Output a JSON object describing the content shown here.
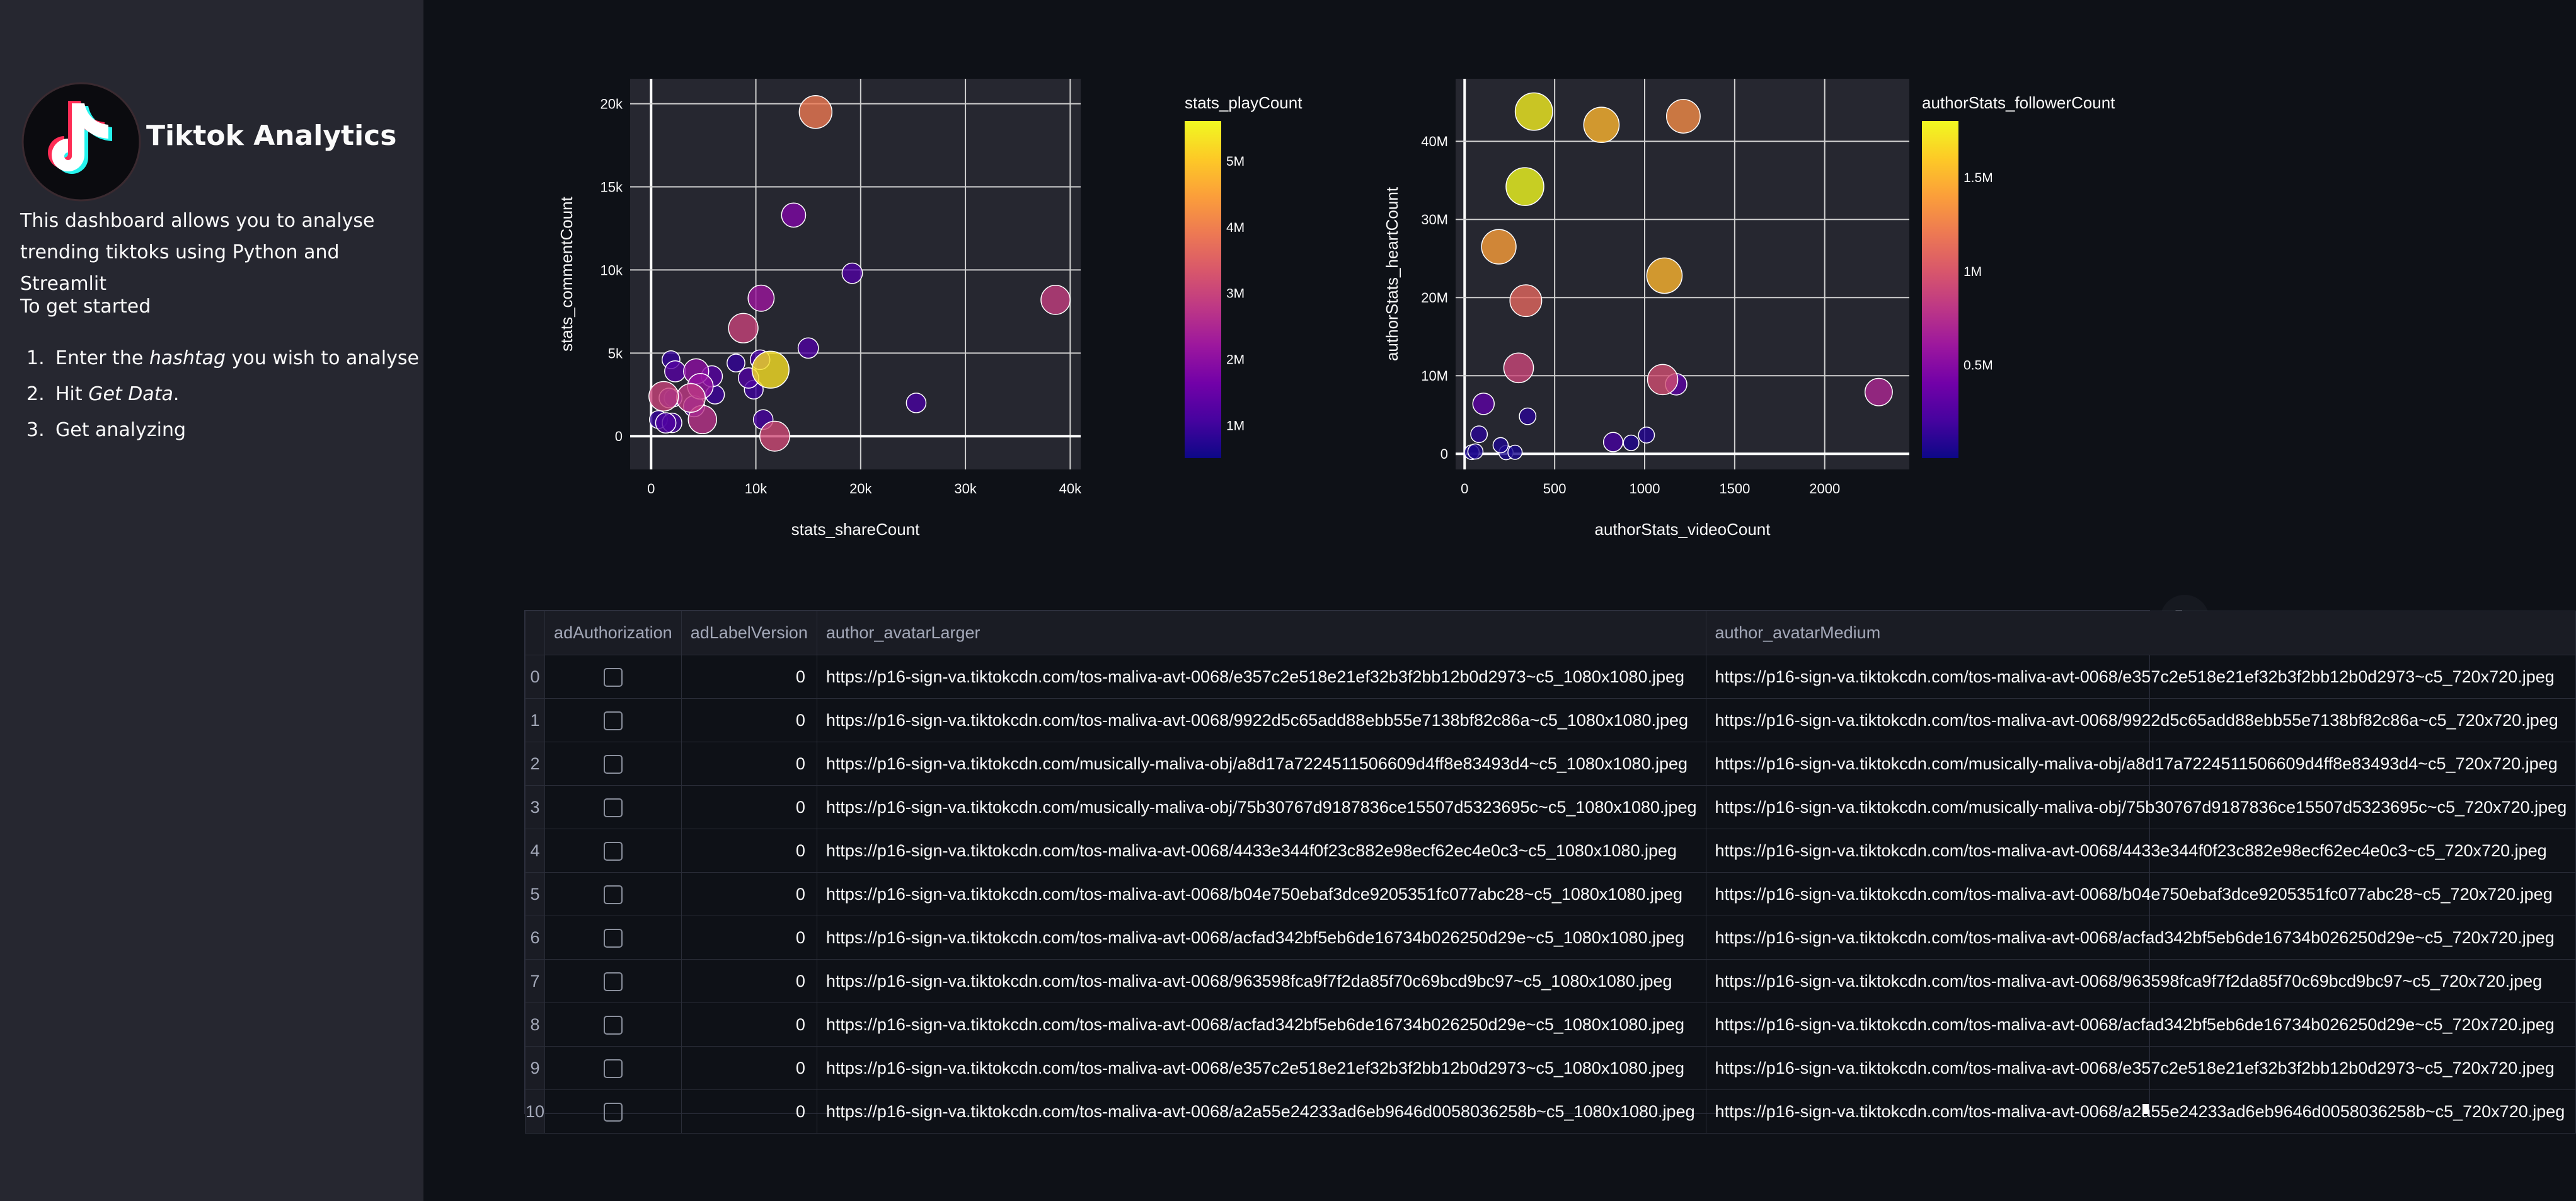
{
  "sidebar": {
    "title": "Tiktok Analytics",
    "logo_icon": "tiktok-logo-icon",
    "intro": "This dashboard allows you to analyse trending tiktoks using Python and Streamlit",
    "get_started": "To get started",
    "steps": [
      {
        "num": "1.",
        "pre": "Enter the ",
        "em": "hashtag",
        "post": " you wish to analyse"
      },
      {
        "num": "2.",
        "pre": "Hit ",
        "em": "Get Data",
        "post": "."
      },
      {
        "num": "3.",
        "pre": "Get analyzing",
        "em": "",
        "post": ""
      }
    ]
  },
  "chart_data": [
    {
      "type": "scatter",
      "xlabel": "stats_shareCount",
      "ylabel": "stats_commentCount",
      "colorbar_title": "stats_playCount",
      "x_ticks": [
        {
          "v": 0,
          "label": "0"
        },
        {
          "v": 10000,
          "label": "10k"
        },
        {
          "v": 20000,
          "label": "20k"
        },
        {
          "v": 30000,
          "label": "30k"
        },
        {
          "v": 40000,
          "label": "40k"
        }
      ],
      "y_ticks": [
        {
          "v": 0,
          "label": "0"
        },
        {
          "v": 5000,
          "label": "5k"
        },
        {
          "v": 10000,
          "label": "10k"
        },
        {
          "v": 15000,
          "label": "15k"
        },
        {
          "v": 20000,
          "label": "20k"
        }
      ],
      "xlim": [
        -2000,
        41000
      ],
      "ylim": [
        -2000,
        21500
      ],
      "colorbar_ticks": [
        {
          "v": 1000000,
          "label": "1M"
        },
        {
          "v": 2000000,
          "label": "2M"
        },
        {
          "v": 3000000,
          "label": "3M"
        },
        {
          "v": 4000000,
          "label": "4M"
        },
        {
          "v": 5000000,
          "label": "5M"
        }
      ],
      "color_range": [
        500000,
        5600000
      ],
      "colorscale": [
        "#0d0887",
        "#46039f",
        "#7201a8",
        "#9c179e",
        "#bd3786",
        "#d8576b",
        "#ed7953",
        "#fb9f3a",
        "#fdca26",
        "#f0f921"
      ],
      "points": [
        {
          "x": 15700,
          "y": 19500,
          "c": 3900000
        },
        {
          "x": 13600,
          "y": 13300,
          "c": 1800000
        },
        {
          "x": 19200,
          "y": 9800,
          "c": 1200000
        },
        {
          "x": 38600,
          "y": 8200,
          "c": 2900000
        },
        {
          "x": 10500,
          "y": 8300,
          "c": 2200000
        },
        {
          "x": 8800,
          "y": 6500,
          "c": 3000000
        },
        {
          "x": 11400,
          "y": 4000,
          "c": 5300000
        },
        {
          "x": 15000,
          "y": 5300,
          "c": 1200000
        },
        {
          "x": 25300,
          "y": 2000,
          "c": 1100000
        },
        {
          "x": 10400,
          "y": 4600,
          "c": 1100000
        },
        {
          "x": 8100,
          "y": 4400,
          "c": 900000
        },
        {
          "x": 1900,
          "y": 4600,
          "c": 900000
        },
        {
          "x": 2300,
          "y": 3900,
          "c": 1300000
        },
        {
          "x": 4300,
          "y": 3900,
          "c": 2000000
        },
        {
          "x": 5800,
          "y": 3600,
          "c": 1300000
        },
        {
          "x": 9300,
          "y": 3500,
          "c": 1200000
        },
        {
          "x": 4700,
          "y": 3000,
          "c": 2100000
        },
        {
          "x": 9800,
          "y": 2800,
          "c": 1000000
        },
        {
          "x": 6100,
          "y": 2500,
          "c": 1000000
        },
        {
          "x": 1200,
          "y": 2400,
          "c": 3000000
        },
        {
          "x": 1700,
          "y": 2300,
          "c": 1100000
        },
        {
          "x": 2100,
          "y": 2300,
          "c": 900000
        },
        {
          "x": 3800,
          "y": 2300,
          "c": 2800000
        },
        {
          "x": 4100,
          "y": 1800,
          "c": 1300000
        },
        {
          "x": 4900,
          "y": 1000,
          "c": 2700000
        },
        {
          "x": 700,
          "y": 1000,
          "c": 900000
        },
        {
          "x": 1400,
          "y": 800,
          "c": 1200000
        },
        {
          "x": 2000,
          "y": 800,
          "c": 1100000
        },
        {
          "x": 10700,
          "y": 1000,
          "c": 1100000
        },
        {
          "x": 11800,
          "y": 0,
          "c": 3100000
        }
      ]
    },
    {
      "type": "scatter",
      "xlabel": "authorStats_videoCount",
      "ylabel": "authorStats_heartCount",
      "colorbar_title": "authorStats_followerCount",
      "x_ticks": [
        {
          "v": 0,
          "label": "0"
        },
        {
          "v": 500,
          "label": "500"
        },
        {
          "v": 1000,
          "label": "1000"
        },
        {
          "v": 1500,
          "label": "1500"
        },
        {
          "v": 2000,
          "label": "2000"
        }
      ],
      "y_ticks": [
        {
          "v": 0,
          "label": "0"
        },
        {
          "v": 10000000,
          "label": "10M"
        },
        {
          "v": 20000000,
          "label": "20M"
        },
        {
          "v": 30000000,
          "label": "30M"
        },
        {
          "v": 40000000,
          "label": "40M"
        }
      ],
      "xlim": [
        -50,
        2470
      ],
      "ylim": [
        -2000000,
        48000000
      ],
      "colorbar_ticks": [
        {
          "v": 500000,
          "label": "0.5M"
        },
        {
          "v": 1000000,
          "label": "1M"
        },
        {
          "v": 1500000,
          "label": "1.5M"
        }
      ],
      "color_range": [
        0,
        1800000
      ],
      "colorscale": [
        "#0d0887",
        "#46039f",
        "#7201a8",
        "#9c179e",
        "#bd3786",
        "#d8576b",
        "#ed7953",
        "#fb9f3a",
        "#fdca26",
        "#f0f921"
      ],
      "points": [
        {
          "x": 385,
          "y": 43800000,
          "c": 1750000
        },
        {
          "x": 760,
          "y": 42100000,
          "c": 1500000
        },
        {
          "x": 1215,
          "y": 43200000,
          "c": 1300000
        },
        {
          "x": 335,
          "y": 34200000,
          "c": 1800000
        },
        {
          "x": 190,
          "y": 26500000,
          "c": 1400000
        },
        {
          "x": 1110,
          "y": 22800000,
          "c": 1500000
        },
        {
          "x": 340,
          "y": 19600000,
          "c": 1100000
        },
        {
          "x": 300,
          "y": 11000000,
          "c": 900000
        },
        {
          "x": 1100,
          "y": 9500000,
          "c": 950000
        },
        {
          "x": 1175,
          "y": 8900000,
          "c": 300000
        },
        {
          "x": 2300,
          "y": 7900000,
          "c": 700000
        },
        {
          "x": 105,
          "y": 6400000,
          "c": 300000
        },
        {
          "x": 350,
          "y": 4800000,
          "c": 100000
        },
        {
          "x": 80,
          "y": 2500000,
          "c": 100000
        },
        {
          "x": 1010,
          "y": 2400000,
          "c": 80000
        },
        {
          "x": 825,
          "y": 1500000,
          "c": 200000
        },
        {
          "x": 925,
          "y": 1400000,
          "c": 70000
        },
        {
          "x": 200,
          "y": 1100000,
          "c": 60000
        },
        {
          "x": 40,
          "y": 200000,
          "c": 50000
        },
        {
          "x": 60,
          "y": 300000,
          "c": 60000
        },
        {
          "x": 230,
          "y": 150000,
          "c": 40000
        },
        {
          "x": 280,
          "y": 200000,
          "c": 40000
        }
      ]
    }
  ],
  "table": {
    "columns": [
      "adAuthorization",
      "adLabelVersion",
      "author_avatarLarger",
      "author_avatarMedium"
    ],
    "rows": [
      {
        "index": "0",
        "adLabel": "0",
        "large": "https://p16-sign-va.tiktokcdn.com/tos-maliva-avt-0068/e357c2e518e21ef32b3f2bb12b0d2973~c5_1080x1080.jpeg",
        "medium": "https://p16-sign-va.tiktokcdn.com/tos-maliva-avt-0068/e357c2e518e21ef32b3f2bb12b0d2973~c5_720x720.jpeg"
      },
      {
        "index": "1",
        "adLabel": "0",
        "large": "https://p16-sign-va.tiktokcdn.com/tos-maliva-avt-0068/9922d5c65add88ebb55e7138bf82c86a~c5_1080x1080.jpeg",
        "medium": "https://p16-sign-va.tiktokcdn.com/tos-maliva-avt-0068/9922d5c65add88ebb55e7138bf82c86a~c5_720x720.jpeg"
      },
      {
        "index": "2",
        "adLabel": "0",
        "large": "https://p16-sign-va.tiktokcdn.com/musically-maliva-obj/a8d17a7224511506609d4ff8e83493d4~c5_1080x1080.jpeg",
        "medium": "https://p16-sign-va.tiktokcdn.com/musically-maliva-obj/a8d17a7224511506609d4ff8e83493d4~c5_720x720.jpeg"
      },
      {
        "index": "3",
        "adLabel": "0",
        "large": "https://p16-sign-va.tiktokcdn.com/musically-maliva-obj/75b30767d9187836ce15507d5323695c~c5_1080x1080.jpeg",
        "medium": "https://p16-sign-va.tiktokcdn.com/musically-maliva-obj/75b30767d9187836ce15507d5323695c~c5_720x720.jpeg"
      },
      {
        "index": "4",
        "adLabel": "0",
        "large": "https://p16-sign-va.tiktokcdn.com/tos-maliva-avt-0068/4433e344f0f23c882e98ecf62ec4e0c3~c5_1080x1080.jpeg",
        "medium": "https://p16-sign-va.tiktokcdn.com/tos-maliva-avt-0068/4433e344f0f23c882e98ecf62ec4e0c3~c5_720x720.jpeg"
      },
      {
        "index": "5",
        "adLabel": "0",
        "large": "https://p16-sign-va.tiktokcdn.com/tos-maliva-avt-0068/b04e750ebaf3dce9205351fc077abc28~c5_1080x1080.jpeg",
        "medium": "https://p16-sign-va.tiktokcdn.com/tos-maliva-avt-0068/b04e750ebaf3dce9205351fc077abc28~c5_720x720.jpeg"
      },
      {
        "index": "6",
        "adLabel": "0",
        "large": "https://p16-sign-va.tiktokcdn.com/tos-maliva-avt-0068/acfad342bf5eb6de16734b026250d29e~c5_1080x1080.jpeg",
        "medium": "https://p16-sign-va.tiktokcdn.com/tos-maliva-avt-0068/acfad342bf5eb6de16734b026250d29e~c5_720x720.jpeg"
      },
      {
        "index": "7",
        "adLabel": "0",
        "large": "https://p16-sign-va.tiktokcdn.com/tos-maliva-avt-0068/963598fca9f7f2da85f70c69bcd9bc97~c5_1080x1080.jpeg",
        "medium": "https://p16-sign-va.tiktokcdn.com/tos-maliva-avt-0068/963598fca9f7f2da85f70c69bcd9bc97~c5_720x720.jpeg"
      },
      {
        "index": "8",
        "adLabel": "0",
        "large": "https://p16-sign-va.tiktokcdn.com/tos-maliva-avt-0068/acfad342bf5eb6de16734b026250d29e~c5_1080x1080.jpeg",
        "medium": "https://p16-sign-va.tiktokcdn.com/tos-maliva-avt-0068/acfad342bf5eb6de16734b026250d29e~c5_720x720.jpeg"
      },
      {
        "index": "9",
        "adLabel": "0",
        "large": "https://p16-sign-va.tiktokcdn.com/tos-maliva-avt-0068/e357c2e518e21ef32b3f2bb12b0d2973~c5_1080x1080.jpeg",
        "medium": "https://p16-sign-va.tiktokcdn.com/tos-maliva-avt-0068/e357c2e518e21ef32b3f2bb12b0d2973~c5_720x720.jpeg"
      },
      {
        "index": "10",
        "adLabel": "0",
        "large": "https://p16-sign-va.tiktokcdn.com/tos-maliva-avt-0068/a2a55e24233ad6eb9646d0058036258b~c5_1080x1080.jpeg",
        "medium": "https://p16-sign-va.tiktokcdn.com/tos-maliva-avt-0068/a2a55e24233ad6eb9646d0058036258b~c5_720x720.jpeg"
      }
    ]
  },
  "toolbar": {
    "fullscreen_icon": "fullscreen-icon"
  }
}
